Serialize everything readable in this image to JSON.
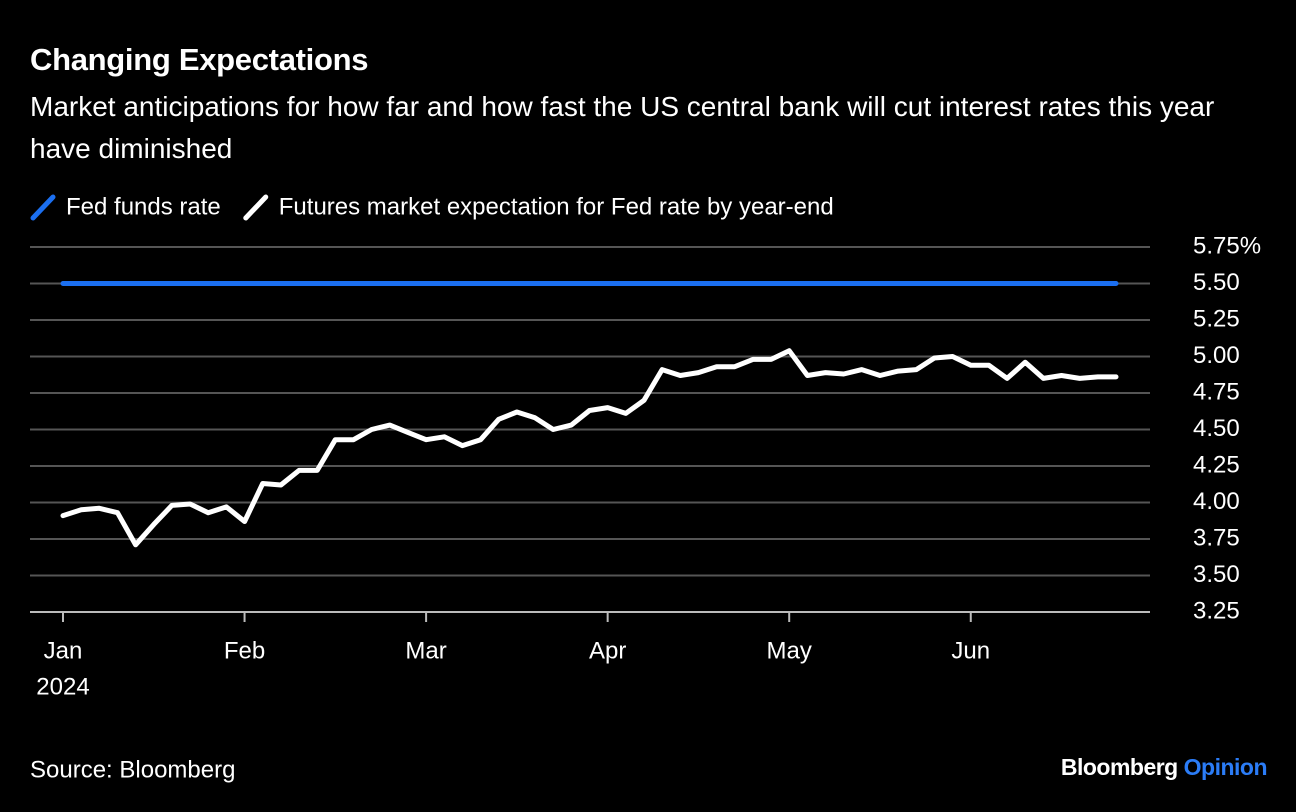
{
  "chart_data": {
    "type": "line",
    "title": "Changing Expectations",
    "subtitle": "Market anticipations for how far and how fast the US central bank will cut interest rates this year have diminished",
    "categories": [
      "Jan",
      null,
      null,
      null,
      null,
      null,
      null,
      null,
      null,
      null,
      "Feb",
      null,
      null,
      null,
      null,
      null,
      null,
      null,
      null,
      null,
      "Mar",
      null,
      null,
      null,
      null,
      null,
      null,
      null,
      null,
      null,
      "Apr",
      null,
      null,
      null,
      null,
      null,
      null,
      null,
      null,
      null,
      "May",
      null,
      null,
      null,
      null,
      null,
      null,
      null,
      null,
      null,
      "Jun",
      null,
      null,
      null,
      null,
      null,
      null,
      null,
      null
    ],
    "x_sublabel": "2024",
    "series": [
      {
        "name": "Fed funds rate",
        "color": "#1b6ff0",
        "values": [
          5.5,
          5.5,
          5.5,
          5.5,
          5.5,
          5.5,
          5.5,
          5.5,
          5.5,
          5.5,
          5.5,
          5.5,
          5.5,
          5.5,
          5.5,
          5.5,
          5.5,
          5.5,
          5.5,
          5.5,
          5.5,
          5.5,
          5.5,
          5.5,
          5.5,
          5.5,
          5.5,
          5.5,
          5.5,
          5.5,
          5.5,
          5.5,
          5.5,
          5.5,
          5.5,
          5.5,
          5.5,
          5.5,
          5.5,
          5.5,
          5.5,
          5.5,
          5.5,
          5.5,
          5.5,
          5.5,
          5.5,
          5.5,
          5.5,
          5.5,
          5.5,
          5.5,
          5.5,
          5.5,
          5.5,
          5.5,
          5.5,
          5.5,
          5.5
        ]
      },
      {
        "name": "Futures market expectation for Fed rate by year-end",
        "color": "#ffffff",
        "values": [
          3.91,
          3.95,
          3.96,
          3.93,
          3.71,
          3.85,
          3.98,
          3.99,
          3.93,
          3.97,
          3.87,
          4.13,
          4.12,
          4.22,
          4.22,
          4.43,
          4.43,
          4.5,
          4.53,
          4.48,
          4.43,
          4.45,
          4.39,
          4.43,
          4.57,
          4.62,
          4.58,
          4.5,
          4.53,
          4.63,
          4.65,
          4.61,
          4.7,
          4.91,
          4.87,
          4.89,
          4.93,
          4.93,
          4.98,
          4.98,
          5.04,
          4.87,
          4.89,
          4.88,
          4.91,
          4.87,
          4.9,
          4.91,
          4.99,
          5.0,
          4.94,
          4.94,
          4.85,
          4.96,
          4.85,
          4.87,
          4.85,
          4.86,
          4.86
        ]
      }
    ],
    "ylim": [
      3.25,
      5.75
    ],
    "yticks": [
      3.25,
      {
        "value": 3.5,
        "label": "3.50"
      },
      3.75,
      {
        "value": 4,
        "label": "4.00"
      },
      4.25,
      {
        "value": 4.5,
        "label": "4.50"
      },
      4.75,
      {
        "value": 5,
        "label": "5.00"
      },
      5.25,
      {
        "value": 5.5,
        "label": "5.50"
      },
      {
        "value": 5.75,
        "label": "5.75%"
      }
    ],
    "grid": true,
    "source": "Source: Bloomberg",
    "brand": "Bloomberg",
    "brand_highlight": "Opinion"
  }
}
